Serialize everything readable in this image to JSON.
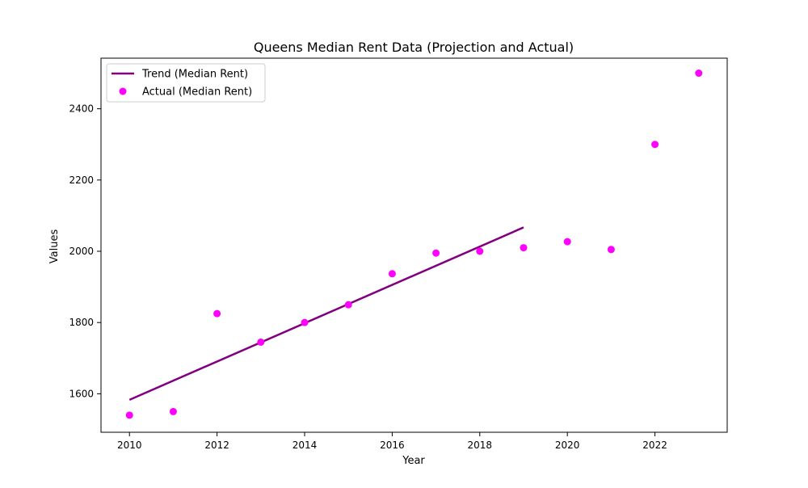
{
  "chart_data": {
    "type": "scatter",
    "title": "Queens Median Rent Data (Projection and Actual)",
    "xlabel": "Year",
    "ylabel": "Values",
    "xlim": [
      2009.35,
      2023.65
    ],
    "ylim": [
      1492,
      2542
    ],
    "xticks": [
      2010,
      2012,
      2014,
      2016,
      2018,
      2020,
      2022
    ],
    "yticks": [
      1600,
      1800,
      2000,
      2200,
      2400
    ],
    "grid": false,
    "legend_position": "top-left",
    "series": [
      {
        "name": "Trend (Median Rent)",
        "kind": "line",
        "color": "#800080",
        "x": [
          2010,
          2019
        ],
        "y": [
          1583,
          2067
        ]
      },
      {
        "name": "Actual (Median Rent)",
        "kind": "scatter",
        "color": "#ff00ff",
        "x": [
          2010,
          2011,
          2012,
          2013,
          2014,
          2015,
          2016,
          2017,
          2018,
          2019,
          2020,
          2021,
          2022,
          2023
        ],
        "y": [
          1540,
          1550,
          1825,
          1745,
          1800,
          1850,
          1937,
          1995,
          2000,
          2010,
          2027,
          2005,
          2300,
          2500
        ]
      }
    ]
  }
}
